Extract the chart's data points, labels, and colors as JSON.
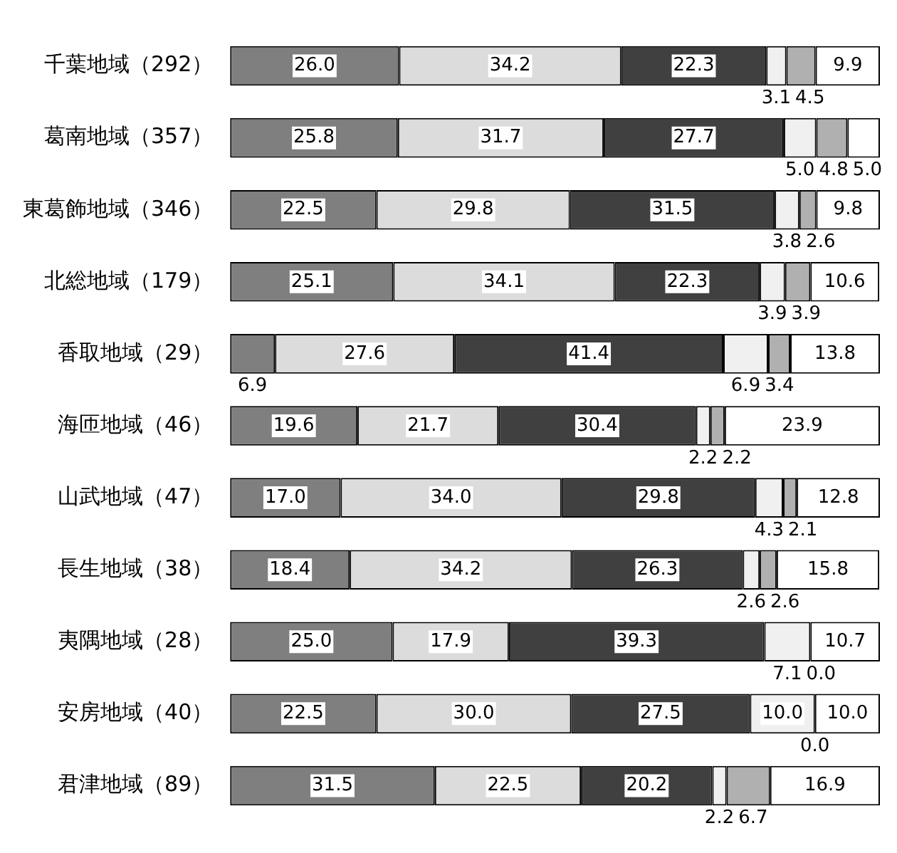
{
  "chart_data": {
    "type": "bar",
    "orientation": "horizontal",
    "stacked": true,
    "legend": false,
    "tick_labels": "y",
    "xlim": [
      0,
      100
    ],
    "categories": [
      "千葉地域（292）",
      "葛南地域（357）",
      "東葛飾地域（346）",
      "北総地域（179）",
      "香取地域（29）",
      "海匝地域（46）",
      "山武地域（47）",
      "長生地域（38）",
      "夷隅地域（28）",
      "安房地域（40）",
      "君津地域（89）"
    ],
    "series": [
      {
        "color": "#7f7f7f",
        "values": [
          26.0,
          25.8,
          22.5,
          25.1,
          6.9,
          19.6,
          17.0,
          18.4,
          25.0,
          22.5,
          31.5
        ],
        "value_labels": [
          "26.0",
          "25.8",
          "22.5",
          "25.1",
          "6.9",
          "19.6",
          "17.0",
          "18.4",
          "25.0",
          "22.5",
          "31.5"
        ]
      },
      {
        "color": "#dcdcdc",
        "values": [
          34.2,
          31.7,
          29.8,
          34.1,
          27.6,
          21.7,
          34.0,
          34.2,
          17.9,
          30.0,
          22.5
        ],
        "value_labels": [
          "34.2",
          "31.7",
          "29.8",
          "34.1",
          "27.6",
          "21.7",
          "34.0",
          "34.2",
          "17.9",
          "30.0",
          "22.5"
        ]
      },
      {
        "color": "#404040",
        "values": [
          22.3,
          27.7,
          31.5,
          22.3,
          41.4,
          30.4,
          29.8,
          26.3,
          39.3,
          27.5,
          20.2
        ],
        "value_labels": [
          "22.3",
          "27.7",
          "31.5",
          "22.3",
          "41.4",
          "30.4",
          "29.8",
          "26.3",
          "39.3",
          "27.5",
          "20.2"
        ]
      },
      {
        "color": "#f0f0f0",
        "values": [
          3.1,
          5.0,
          3.8,
          3.9,
          6.9,
          2.2,
          4.3,
          2.6,
          7.1,
          10.0,
          2.2
        ],
        "value_labels": [
          "3.1",
          "5.0",
          "3.8",
          "3.9",
          "6.9",
          "2.2",
          "4.3",
          "2.6",
          "7.1",
          "10.0",
          "2.2"
        ]
      },
      {
        "color": "#b0b0b0",
        "values": [
          4.5,
          4.8,
          2.6,
          3.9,
          3.4,
          2.2,
          2.1,
          2.6,
          0.0,
          0.0,
          6.7
        ],
        "value_labels": [
          "4.5",
          "4.8",
          "2.6",
          "3.9",
          "3.4",
          "2.2",
          "2.1",
          "2.6",
          "0.0",
          "0.0",
          "6.7"
        ]
      },
      {
        "color": "#ffffff",
        "values": [
          9.9,
          5.0,
          9.8,
          10.6,
          13.8,
          23.9,
          12.8,
          15.8,
          10.7,
          10.0,
          16.9
        ],
        "value_labels": [
          "9.9",
          "5.0",
          "9.8",
          "10.6",
          "13.8",
          "23.9",
          "12.8",
          "15.8",
          "10.7",
          "10.0",
          "16.9"
        ]
      }
    ]
  }
}
